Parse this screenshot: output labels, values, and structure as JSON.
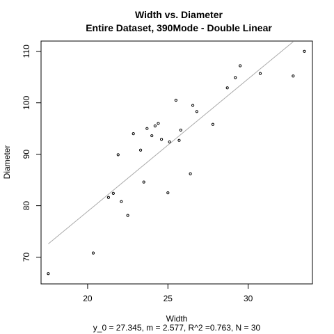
{
  "chart_data": {
    "type": "scatter",
    "title": "Width vs. Diameter",
    "subtitle": "Entire Dataset, 390Mode - Double Linear",
    "xlabel": "Width",
    "ylabel": "Diameter",
    "footnote": "y_0 = 27.345, m = 2.577, R^2 =0.763, N = 30",
    "xlim": [
      17.1,
      34.0
    ],
    "ylim": [
      64.8,
      112.0
    ],
    "xticks": [
      20,
      25,
      30
    ],
    "yticks": [
      70,
      80,
      90,
      100,
      110
    ],
    "grid": false,
    "legend": "none",
    "point_color": "#000000",
    "line_color": "#a9a9a9",
    "fit_line": {
      "intercept": 27.345,
      "slope": 2.577,
      "x_range": [
        17.55,
        32.8
      ]
    },
    "points": [
      {
        "x": 17.55,
        "y": 66.8
      },
      {
        "x": 20.35,
        "y": 70.8
      },
      {
        "x": 21.3,
        "y": 81.6
      },
      {
        "x": 21.6,
        "y": 82.4
      },
      {
        "x": 21.9,
        "y": 89.9
      },
      {
        "x": 22.1,
        "y": 80.8
      },
      {
        "x": 22.5,
        "y": 78.1
      },
      {
        "x": 22.85,
        "y": 94.0
      },
      {
        "x": 23.3,
        "y": 90.8
      },
      {
        "x": 23.5,
        "y": 84.6
      },
      {
        "x": 23.7,
        "y": 95.0
      },
      {
        "x": 24.0,
        "y": 93.6
      },
      {
        "x": 24.2,
        "y": 95.5
      },
      {
        "x": 24.4,
        "y": 96.0
      },
      {
        "x": 24.6,
        "y": 92.9
      },
      {
        "x": 25.0,
        "y": 82.5
      },
      {
        "x": 25.1,
        "y": 92.4
      },
      {
        "x": 25.5,
        "y": 100.5
      },
      {
        "x": 25.7,
        "y": 92.7
      },
      {
        "x": 25.8,
        "y": 94.7
      },
      {
        "x": 26.4,
        "y": 86.2
      },
      {
        "x": 26.55,
        "y": 99.5
      },
      {
        "x": 26.8,
        "y": 98.3
      },
      {
        "x": 27.8,
        "y": 95.8
      },
      {
        "x": 28.7,
        "y": 102.9
      },
      {
        "x": 29.2,
        "y": 104.9
      },
      {
        "x": 29.5,
        "y": 107.2
      },
      {
        "x": 30.75,
        "y": 105.7
      },
      {
        "x": 32.8,
        "y": 105.2
      },
      {
        "x": 33.5,
        "y": 110.0
      }
    ]
  }
}
